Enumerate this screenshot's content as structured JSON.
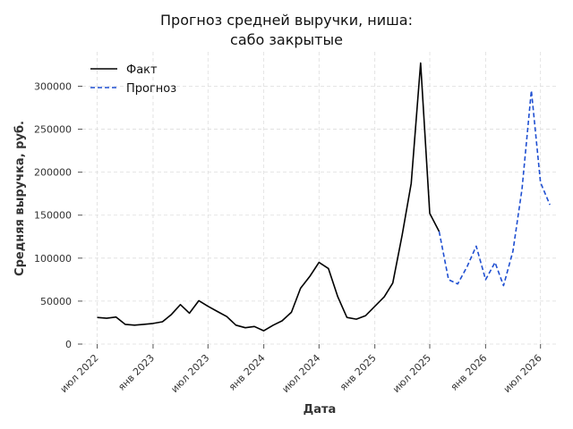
{
  "chart_data": {
    "type": "line",
    "title": [
      "Прогноз средней выручки, ниша:",
      "сабо закрытые"
    ],
    "xlabel": "Дата",
    "ylabel": "Средняя выручка, руб.",
    "ylim": [
      0,
      340000
    ],
    "yticks": [
      0,
      50000,
      100000,
      150000,
      200000,
      250000,
      300000
    ],
    "ytick_labels": [
      "0",
      "50000",
      "100000",
      "150000",
      "200000",
      "250000",
      "300000"
    ],
    "xlim": [
      "2022-05-13",
      "2026-08-24"
    ],
    "xticks": [
      "2022-07-01",
      "2023-01-01",
      "2023-07-01",
      "2024-01-01",
      "2024-07-01",
      "2025-01-01",
      "2025-07-01",
      "2026-01-01",
      "2026-07-01"
    ],
    "xtick_labels": [
      "июл 2022",
      "янв 2023",
      "июл 2023",
      "янв 2024",
      "июл 2024",
      "янв 2025",
      "июл 2025",
      "янв 2026",
      "июл 2026"
    ],
    "grid": true,
    "legend_position": "top-left",
    "series": [
      {
        "name": "Факт",
        "style": "solid",
        "color": "#000000",
        "points": [
          [
            "2022-07-01",
            31000
          ],
          [
            "2022-08-01",
            30000
          ],
          [
            "2022-09-01",
            31500
          ],
          [
            "2022-10-01",
            23000
          ],
          [
            "2022-11-01",
            22000
          ],
          [
            "2022-12-01",
            23000
          ],
          [
            "2023-01-01",
            24000
          ],
          [
            "2023-02-01",
            26000
          ],
          [
            "2023-03-01",
            34000
          ],
          [
            "2023-04-01",
            46000
          ],
          [
            "2023-05-01",
            36000
          ],
          [
            "2023-06-01",
            50500
          ],
          [
            "2023-07-01",
            44000
          ],
          [
            "2023-08-01",
            38000
          ],
          [
            "2023-09-01",
            32000
          ],
          [
            "2023-10-01",
            22000
          ],
          [
            "2023-11-01",
            19000
          ],
          [
            "2023-12-01",
            20500
          ],
          [
            "2024-01-01",
            15500
          ],
          [
            "2024-02-01",
            22000
          ],
          [
            "2024-03-01",
            27000
          ],
          [
            "2024-04-01",
            37000
          ],
          [
            "2024-05-01",
            65000
          ],
          [
            "2024-06-01",
            79000
          ],
          [
            "2024-07-01",
            95000
          ],
          [
            "2024-08-01",
            88000
          ],
          [
            "2024-09-01",
            55000
          ],
          [
            "2024-10-01",
            31000
          ],
          [
            "2024-11-01",
            29000
          ],
          [
            "2024-12-01",
            33000
          ],
          [
            "2025-01-01",
            44000
          ],
          [
            "2025-02-01",
            55000
          ],
          [
            "2025-03-01",
            71000
          ],
          [
            "2025-04-01",
            127000
          ],
          [
            "2025-05-01",
            187000
          ],
          [
            "2025-06-01",
            327000
          ],
          [
            "2025-07-01",
            152000
          ],
          [
            "2025-08-01",
            131000
          ]
        ]
      },
      {
        "name": "Прогноз",
        "style": "dashed",
        "color": "#1f4fd1",
        "points": [
          [
            "2025-08-01",
            131000
          ],
          [
            "2025-09-01",
            75000
          ],
          [
            "2025-10-01",
            70000
          ],
          [
            "2025-11-01",
            90000
          ],
          [
            "2025-12-01",
            114000
          ],
          [
            "2026-01-01",
            75000
          ],
          [
            "2026-02-01",
            95000
          ],
          [
            "2026-03-01",
            68000
          ],
          [
            "2026-04-01",
            108000
          ],
          [
            "2026-05-01",
            180000
          ],
          [
            "2026-06-01",
            295000
          ],
          [
            "2026-07-01",
            188000
          ],
          [
            "2026-08-01",
            162000
          ]
        ]
      }
    ]
  }
}
